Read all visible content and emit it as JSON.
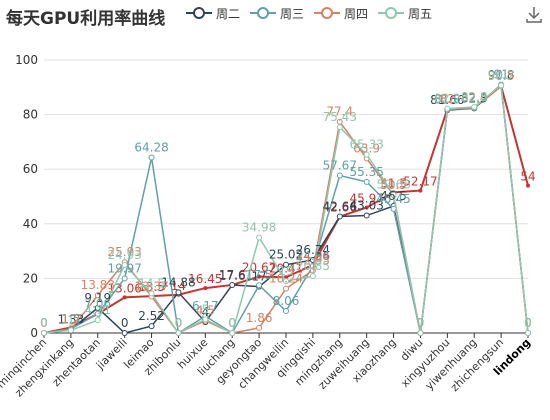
{
  "title": "每天GPU利用率曲线",
  "toolbar": {
    "download_icon": "download-icon"
  },
  "chart_data": {
    "type": "line",
    "title": "每天GPU利用率曲线",
    "xlabel": "",
    "ylabel": "",
    "ylim": [
      0,
      100
    ],
    "yticks": [
      0,
      20,
      40,
      60,
      80,
      100
    ],
    "grid": true,
    "legend_position": "top",
    "categories": [
      "minqinchen",
      "zhengxinkang",
      "zhentaotan",
      "jiaweili",
      "leimao",
      "zhibonlu",
      "huixue",
      "liuchang",
      "geyongtao",
      "changweilin",
      "qingqishi",
      "mingzhang",
      "zuweihuang",
      "xiaozhang",
      "diwu",
      "xingyuzhou",
      "yiwenhuang",
      "zhichengsun",
      "lindong"
    ],
    "highlighted_category": "lindong",
    "reference_series": {
      "color": "#c23531",
      "values": [
        0,
        2,
        7,
        13.06,
        13.5,
        14,
        16.45,
        17.6,
        20.67,
        20.41,
        24.96,
        42.66,
        45.97,
        51.5,
        52.17,
        82,
        82.5,
        90.5,
        54
      ]
    },
    "series": [
      {
        "name": "周二",
        "color": "#2f4554",
        "values": [
          0,
          1.33,
          9.19,
          0,
          2.52,
          14.88,
          4,
          17.6,
          17,
          25.02,
          26.74,
          42.66,
          43.03,
          46.5,
          0,
          81.66,
          82.3,
          90.8,
          0
        ]
      },
      {
        "name": "周三",
        "color": "#61a0a8",
        "values": [
          0,
          1.5,
          7.06,
          19.97,
          64.28,
          0,
          6.17,
          0,
          17.5,
          8.06,
          24.54,
          57.67,
          55.35,
          45.45,
          0,
          81.8,
          82.4,
          91.0,
          0
        ]
      },
      {
        "name": "周四",
        "color": "#d48265",
        "values": [
          0,
          1.2,
          13.83,
          25.93,
          13.37,
          0,
          4.5,
          0,
          1.86,
          16.24,
          22.95,
          77.4,
          63.9,
          50.5,
          0,
          82.0,
          82.6,
          90.5,
          0
        ]
      },
      {
        "name": "周五",
        "color": "#91c7ae",
        "values": [
          0,
          1.0,
          4.71,
          24.93,
          14.5,
          0,
          5.0,
          0,
          34.98,
          19.0,
          20.85,
          75.43,
          65.33,
          50.66,
          0,
          82.2,
          82.8,
          90.7,
          0
        ]
      }
    ]
  }
}
